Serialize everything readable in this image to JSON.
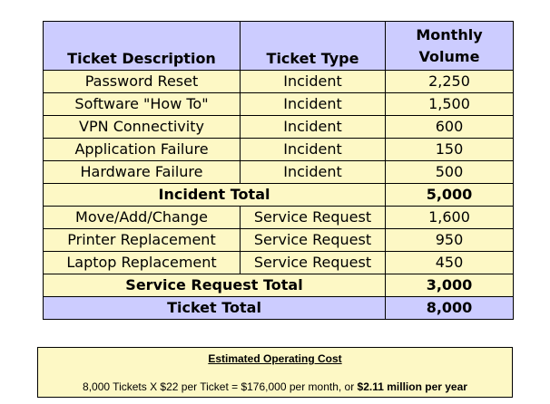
{
  "table": {
    "headers": {
      "description": "Ticket Description",
      "type": "Ticket Type",
      "volume_line1": "Monthly",
      "volume_line2": "Volume"
    },
    "incident_rows": [
      {
        "description": "Password Reset",
        "type": "Incident",
        "volume": "2,250"
      },
      {
        "description": "Software \"How To\"",
        "type": "Incident",
        "volume": "1,500"
      },
      {
        "description": "VPN Connectivity",
        "type": "Incident",
        "volume": "600"
      },
      {
        "description": "Application Failure",
        "type": "Incident",
        "volume": "150"
      },
      {
        "description": "Hardware Failure",
        "type": "Incident",
        "volume": "500"
      }
    ],
    "incident_total": {
      "label": "Incident Total",
      "volume": "5,000"
    },
    "service_rows": [
      {
        "description": "Move/Add/Change",
        "type": "Service Request",
        "volume": "1,600"
      },
      {
        "description": "Printer Replacement",
        "type": "Service Request",
        "volume": "950"
      },
      {
        "description": "Laptop Replacement",
        "type": "Service Request",
        "volume": "450"
      }
    ],
    "service_total": {
      "label": "Service Request Total",
      "volume": "3,000"
    },
    "ticket_total": {
      "label": "Ticket Total",
      "volume": "8,000"
    }
  },
  "cost": {
    "title": "Estimated Operating Cost",
    "line_prefix": "8,000 Tickets X $22 per Ticket =  $176,000 per month, or ",
    "line_bold": "$2.11 million per year"
  },
  "colors": {
    "header_fill": "#ccccff",
    "body_fill": "#fdf8c5",
    "border": "#000000"
  }
}
